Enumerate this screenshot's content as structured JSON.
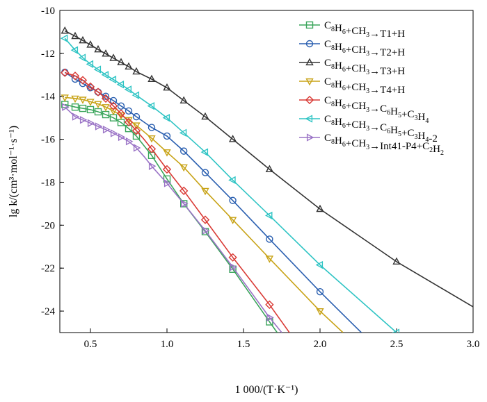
{
  "chart_data": {
    "type": "line",
    "xlabel": "1 000/(T·K⁻¹)",
    "ylabel": "lg k/(cm³·mol⁻¹·s⁻¹)",
    "xlim": [
      0.3,
      3.0
    ],
    "ylim": [
      -25,
      -10
    ],
    "x_ticks": [
      0.5,
      1.0,
      1.5,
      2.0,
      2.5,
      3.0
    ],
    "x_tick_labels": [
      "0.5",
      "1.0",
      "1.5",
      "2.0",
      "2.5",
      "3.0"
    ],
    "y_ticks": [
      -10,
      -12,
      -14,
      -16,
      -18,
      -20,
      -22,
      -24
    ],
    "y_tick_labels": [
      "-10",
      "-12",
      "-14",
      "-16",
      "-18",
      "-20",
      "-22",
      "-24"
    ],
    "series": [
      {
        "name": "C8H6+CH3→T1+H",
        "legend": [
          [
            "C",
            ""
          ],
          [
            "8",
            "sub"
          ],
          [
            "H",
            ""
          ],
          [
            "6",
            "sub"
          ],
          [
            "+CH",
            ""
          ],
          [
            "3",
            "sub"
          ],
          [
            "→T1+H",
            ""
          ]
        ],
        "color": "#3aa55b",
        "marker": "square",
        "x": [
          0.333,
          0.4,
          0.45,
          0.5,
          0.55,
          0.6,
          0.65,
          0.7,
          0.75,
          0.8,
          0.85,
          0.9,
          1.0,
          1.11,
          1.25,
          1.43,
          1.67,
          1.72
        ],
        "y": [
          -14.38,
          -14.5,
          -14.56,
          -14.62,
          -14.72,
          -14.85,
          -15.0,
          -15.22,
          -15.5,
          -15.85,
          -16.3,
          -16.75,
          -17.85,
          -19.0,
          -20.3,
          -22.05,
          -24.5,
          -25.0
        ],
        "marker_x": [
          0.333,
          0.4,
          0.45,
          0.5,
          0.55,
          0.6,
          0.65,
          0.7,
          0.75,
          0.8,
          0.9,
          1.0,
          1.11,
          1.25,
          1.43,
          1.67
        ]
      },
      {
        "name": "C8H6+CH3→T2+H",
        "legend": [
          [
            "C",
            ""
          ],
          [
            "8",
            "sub"
          ],
          [
            "H",
            ""
          ],
          [
            "6",
            "sub"
          ],
          [
            "+CH",
            ""
          ],
          [
            "3",
            "sub"
          ],
          [
            "→T2+H",
            ""
          ]
        ],
        "color": "#2a5fb0",
        "marker": "circle",
        "x": [
          0.333,
          0.4,
          0.45,
          0.5,
          0.55,
          0.6,
          0.65,
          0.7,
          0.75,
          0.8,
          0.85,
          0.9,
          1.0,
          1.11,
          1.25,
          1.43,
          1.67,
          2.0,
          2.27
        ],
        "y": [
          -12.88,
          -13.2,
          -13.4,
          -13.6,
          -13.8,
          -14.0,
          -14.2,
          -14.45,
          -14.68,
          -14.95,
          -15.2,
          -15.45,
          -15.85,
          -16.55,
          -17.55,
          -18.85,
          -20.65,
          -23.1,
          -25.0
        ],
        "marker_x": [
          0.333,
          0.4,
          0.45,
          0.5,
          0.55,
          0.6,
          0.65,
          0.7,
          0.75,
          0.8,
          0.9,
          1.0,
          1.11,
          1.25,
          1.43,
          1.67,
          2.0
        ]
      },
      {
        "name": "C8H6+CH3→T3+H",
        "legend": [
          [
            "C",
            ""
          ],
          [
            "8",
            "sub"
          ],
          [
            "H",
            ""
          ],
          [
            "6",
            "sub"
          ],
          [
            "+CH",
            ""
          ],
          [
            "3",
            "sub"
          ],
          [
            "→T3+H",
            ""
          ]
        ],
        "color": "#333333",
        "marker": "triangle-up",
        "x": [
          0.333,
          0.4,
          0.45,
          0.5,
          0.55,
          0.6,
          0.65,
          0.7,
          0.75,
          0.8,
          0.9,
          1.0,
          1.11,
          1.25,
          1.43,
          1.67,
          2.0,
          2.5,
          3.0
        ],
        "y": [
          -10.95,
          -11.2,
          -11.4,
          -11.6,
          -11.82,
          -12.02,
          -12.22,
          -12.42,
          -12.62,
          -12.85,
          -13.2,
          -13.6,
          -14.2,
          -14.95,
          -16.0,
          -17.4,
          -19.25,
          -21.7,
          -23.8
        ],
        "marker_x": [
          0.333,
          0.4,
          0.45,
          0.5,
          0.55,
          0.6,
          0.65,
          0.7,
          0.75,
          0.8,
          0.9,
          1.0,
          1.11,
          1.25,
          1.43,
          1.67,
          2.0,
          2.5
        ]
      },
      {
        "name": "C8H6+CH3→T4+H",
        "legend": [
          [
            "C",
            ""
          ],
          [
            "8",
            "sub"
          ],
          [
            "H",
            ""
          ],
          [
            "6",
            "sub"
          ],
          [
            "+CH",
            ""
          ],
          [
            "3",
            "sub"
          ],
          [
            "→T4+H",
            ""
          ]
        ],
        "color": "#c8a317",
        "marker": "triangle-down",
        "x": [
          0.333,
          0.4,
          0.45,
          0.5,
          0.55,
          0.6,
          0.65,
          0.7,
          0.75,
          0.8,
          0.85,
          0.9,
          1.0,
          1.11,
          1.25,
          1.43,
          1.67,
          2.0,
          2.15
        ],
        "y": [
          -14.05,
          -14.1,
          -14.15,
          -14.25,
          -14.35,
          -14.5,
          -14.68,
          -14.88,
          -15.1,
          -15.35,
          -15.65,
          -15.95,
          -16.6,
          -17.3,
          -18.4,
          -19.75,
          -21.55,
          -24.0,
          -25.0
        ],
        "marker_x": [
          0.333,
          0.4,
          0.45,
          0.5,
          0.55,
          0.6,
          0.65,
          0.7,
          0.75,
          0.8,
          0.9,
          1.0,
          1.11,
          1.25,
          1.43,
          1.67,
          2.0
        ]
      },
      {
        "name": "C8H6+CH3→C6H5+C3H4",
        "legend": [
          [
            "C",
            ""
          ],
          [
            "8",
            "sub"
          ],
          [
            "H",
            ""
          ],
          [
            "6",
            "sub"
          ],
          [
            "+CH",
            ""
          ],
          [
            "3",
            "sub"
          ],
          [
            "→C",
            ""
          ],
          [
            "6",
            "sub"
          ],
          [
            "H",
            ""
          ],
          [
            "5",
            "sub"
          ],
          [
            "+C",
            ""
          ],
          [
            "3",
            "sub"
          ],
          [
            "H",
            ""
          ],
          [
            "4",
            "sub"
          ]
        ],
        "color": "#d93a35",
        "marker": "diamond",
        "x": [
          0.333,
          0.4,
          0.45,
          0.5,
          0.55,
          0.6,
          0.65,
          0.7,
          0.75,
          0.8,
          0.85,
          0.9,
          1.0,
          1.11,
          1.25,
          1.43,
          1.67,
          1.8
        ],
        "y": [
          -12.9,
          -13.05,
          -13.25,
          -13.55,
          -13.8,
          -14.1,
          -14.45,
          -14.8,
          -15.2,
          -15.6,
          -16.0,
          -16.45,
          -17.4,
          -18.4,
          -19.75,
          -21.5,
          -23.7,
          -25.0
        ],
        "marker_x": [
          0.333,
          0.4,
          0.45,
          0.5,
          0.55,
          0.6,
          0.65,
          0.7,
          0.75,
          0.8,
          0.9,
          1.0,
          1.11,
          1.25,
          1.43,
          1.67
        ]
      },
      {
        "name": "C8H6+CH3→C6H5+C3H4-2",
        "legend": [
          [
            "C",
            ""
          ],
          [
            "8",
            "sub"
          ],
          [
            "H",
            ""
          ],
          [
            "6",
            "sub"
          ],
          [
            "+CH",
            ""
          ],
          [
            "3",
            "sub"
          ],
          [
            "→C",
            ""
          ],
          [
            "6",
            "sub"
          ],
          [
            "H",
            ""
          ],
          [
            "5",
            "sub"
          ],
          [
            "+C",
            ""
          ],
          [
            "3",
            "sub"
          ],
          [
            "H",
            ""
          ],
          [
            "4",
            "sub"
          ],
          [
            "-2",
            ""
          ]
        ],
        "color": "#2ec4c4",
        "marker": "triangle-left",
        "x": [
          0.333,
          0.4,
          0.45,
          0.5,
          0.55,
          0.6,
          0.65,
          0.7,
          0.75,
          0.8,
          0.9,
          1.0,
          1.11,
          1.25,
          1.43,
          1.67,
          2.0,
          2.5
        ],
        "y": [
          -11.3,
          -11.85,
          -12.2,
          -12.5,
          -12.75,
          -13.0,
          -13.22,
          -13.45,
          -13.68,
          -13.95,
          -14.45,
          -15.0,
          -15.7,
          -16.6,
          -17.9,
          -19.55,
          -21.85,
          -25.0
        ],
        "marker_x": [
          0.333,
          0.4,
          0.45,
          0.5,
          0.55,
          0.6,
          0.65,
          0.7,
          0.75,
          0.8,
          0.9,
          1.0,
          1.11,
          1.25,
          1.43,
          1.67,
          2.0,
          2.5
        ]
      },
      {
        "name": "C8H6+CH3→Int41-P4+C2H2",
        "legend": [
          [
            "C",
            ""
          ],
          [
            "8",
            "sub"
          ],
          [
            "H",
            ""
          ],
          [
            "6",
            "sub"
          ],
          [
            "+CH",
            ""
          ],
          [
            "3",
            "sub"
          ],
          [
            "→Int41-P4+C",
            ""
          ],
          [
            "2",
            "sub"
          ],
          [
            "H",
            ""
          ],
          [
            "2",
            "sub"
          ]
        ],
        "color": "#9a73c6",
        "marker": "triangle-right",
        "x": [
          0.333,
          0.4,
          0.45,
          0.5,
          0.55,
          0.6,
          0.65,
          0.7,
          0.75,
          0.8,
          0.85,
          0.9,
          1.0,
          1.11,
          1.25,
          1.43,
          1.67,
          1.75
        ],
        "y": [
          -14.5,
          -14.95,
          -15.1,
          -15.25,
          -15.4,
          -15.55,
          -15.72,
          -15.9,
          -16.1,
          -16.4,
          -16.8,
          -17.25,
          -18.05,
          -19.0,
          -20.25,
          -21.95,
          -24.3,
          -25.0
        ],
        "marker_x": [
          0.333,
          0.4,
          0.45,
          0.5,
          0.55,
          0.6,
          0.65,
          0.7,
          0.75,
          0.8,
          0.9,
          1.0,
          1.11,
          1.25,
          1.43,
          1.67
        ]
      }
    ]
  }
}
